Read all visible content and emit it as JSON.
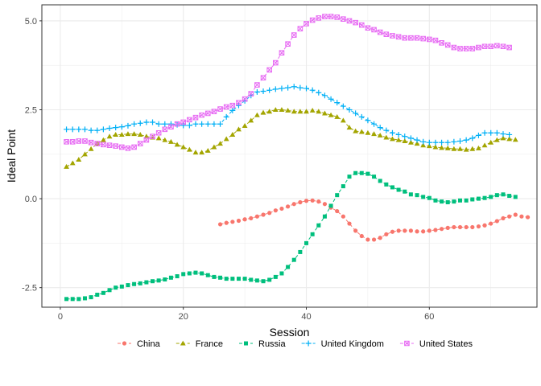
{
  "chart_data": {
    "type": "line",
    "title": "",
    "xlabel": "Session",
    "ylabel": "Ideal Point",
    "xlim": [
      -3,
      77.5
    ],
    "ylim": [
      -3.05,
      5.45
    ],
    "xticks": [
      0,
      20,
      40,
      60
    ],
    "yticks": [
      -2.5,
      0.0,
      2.5,
      5.0
    ],
    "xtick_labels": [
      "0",
      "20",
      "40",
      "60"
    ],
    "ytick_labels": [
      "-2.5",
      "0.0",
      "2.5",
      "5.0"
    ],
    "grid": true,
    "legend_position": "bottom",
    "series": [
      {
        "name": "China",
        "color": "#F8766D",
        "marker": "circle",
        "x_start": 26,
        "values": [
          -0.72,
          -0.68,
          -0.65,
          -0.62,
          -0.58,
          -0.55,
          -0.5,
          -0.45,
          -0.4,
          -0.33,
          -0.28,
          -0.22,
          -0.15,
          -0.1,
          -0.06,
          -0.05,
          -0.08,
          -0.15,
          -0.25,
          -0.35,
          -0.5,
          -0.7,
          -0.9,
          -1.05,
          -1.15,
          -1.15,
          -1.1,
          -1.0,
          -0.93,
          -0.9,
          -0.9,
          -0.9,
          -0.92,
          -0.92,
          -0.9,
          -0.88,
          -0.85,
          -0.82,
          -0.8,
          -0.8,
          -0.8,
          -0.8,
          -0.78,
          -0.75,
          -0.7,
          -0.63,
          -0.55,
          -0.5,
          -0.45,
          -0.5,
          -0.52
        ]
      },
      {
        "name": "France",
        "color": "#A3A500",
        "marker": "triangle",
        "x_start": 1,
        "values": [
          0.9,
          1.0,
          1.1,
          1.25,
          1.4,
          1.55,
          1.65,
          1.75,
          1.8,
          1.8,
          1.82,
          1.82,
          1.8,
          1.75,
          1.72,
          1.7,
          1.65,
          1.6,
          1.52,
          1.45,
          1.38,
          1.3,
          1.3,
          1.35,
          1.45,
          1.55,
          1.68,
          1.8,
          1.95,
          2.05,
          2.2,
          2.35,
          2.42,
          2.45,
          2.5,
          2.5,
          2.48,
          2.45,
          2.45,
          2.45,
          2.48,
          2.45,
          2.4,
          2.35,
          2.3,
          2.2,
          2.0,
          1.9,
          1.88,
          1.85,
          1.82,
          1.78,
          1.72,
          1.68,
          1.65,
          1.62,
          1.58,
          1.55,
          1.5,
          1.48,
          1.45,
          1.43,
          1.42,
          1.4,
          1.4,
          1.38,
          1.4,
          1.42,
          1.5,
          1.58,
          1.65,
          1.7,
          1.68,
          1.66
        ]
      },
      {
        "name": "Russia",
        "color": "#00BF7D",
        "marker": "square",
        "x_start": 1,
        "values": [
          -2.82,
          -2.82,
          -2.82,
          -2.8,
          -2.77,
          -2.7,
          -2.65,
          -2.57,
          -2.5,
          -2.47,
          -2.43,
          -2.4,
          -2.38,
          -2.35,
          -2.32,
          -2.3,
          -2.27,
          -2.22,
          -2.18,
          -2.12,
          -2.1,
          -2.08,
          -2.1,
          -2.15,
          -2.2,
          -2.22,
          -2.25,
          -2.25,
          -2.25,
          -2.25,
          -2.28,
          -2.3,
          -2.32,
          -2.28,
          -2.2,
          -2.1,
          -1.92,
          -1.72,
          -1.5,
          -1.25,
          -1.0,
          -0.75,
          -0.5,
          -0.2,
          0.1,
          0.35,
          0.62,
          0.72,
          0.72,
          0.7,
          0.62,
          0.5,
          0.4,
          0.32,
          0.25,
          0.2,
          0.12,
          0.1,
          0.05,
          0.02,
          -0.05,
          -0.08,
          -0.1,
          -0.08,
          -0.05,
          -0.05,
          -0.02,
          0.0,
          0.02,
          0.05,
          0.1,
          0.12,
          0.08,
          0.05
        ]
      },
      {
        "name": "United Kingdom",
        "color": "#00B0F6",
        "marker": "plus",
        "x_start": 1,
        "values": [
          1.95,
          1.95,
          1.95,
          1.95,
          1.92,
          1.92,
          1.95,
          1.98,
          2.0,
          2.02,
          2.05,
          2.1,
          2.12,
          2.15,
          2.15,
          2.1,
          2.1,
          2.1,
          2.08,
          2.06,
          2.06,
          2.1,
          2.1,
          2.1,
          2.1,
          2.1,
          2.3,
          2.48,
          2.62,
          2.75,
          2.9,
          3.0,
          3.02,
          3.05,
          3.08,
          3.1,
          3.12,
          3.15,
          3.12,
          3.1,
          3.05,
          2.98,
          2.9,
          2.8,
          2.7,
          2.6,
          2.5,
          2.4,
          2.3,
          2.2,
          2.1,
          2.0,
          1.92,
          1.85,
          1.8,
          1.75,
          1.7,
          1.65,
          1.6,
          1.58,
          1.58,
          1.58,
          1.58,
          1.6,
          1.62,
          1.65,
          1.7,
          1.78,
          1.85,
          1.85,
          1.85,
          1.82,
          1.8
        ]
      },
      {
        "name": "United States",
        "color": "#E76BF3",
        "marker": "square-x",
        "x_start": 1,
        "values": [
          1.6,
          1.6,
          1.62,
          1.62,
          1.58,
          1.55,
          1.52,
          1.5,
          1.48,
          1.45,
          1.42,
          1.45,
          1.55,
          1.65,
          1.75,
          1.85,
          1.95,
          2.02,
          2.1,
          2.15,
          2.22,
          2.28,
          2.35,
          2.4,
          2.45,
          2.52,
          2.58,
          2.62,
          2.7,
          2.8,
          2.95,
          3.2,
          3.4,
          3.62,
          3.82,
          4.1,
          4.35,
          4.6,
          4.78,
          4.92,
          5.02,
          5.08,
          5.12,
          5.12,
          5.1,
          5.05,
          5.0,
          4.95,
          4.88,
          4.8,
          4.75,
          4.68,
          4.62,
          4.58,
          4.55,
          4.52,
          4.52,
          4.52,
          4.5,
          4.48,
          4.45,
          4.38,
          4.32,
          4.25,
          4.22,
          4.22,
          4.22,
          4.25,
          4.28,
          4.28,
          4.3,
          4.28,
          4.25
        ]
      }
    ]
  }
}
